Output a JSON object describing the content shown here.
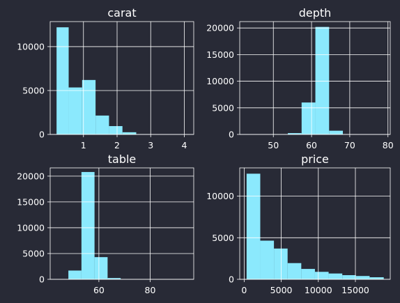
{
  "colors": {
    "background": "#282a36",
    "bar": "#8be9fd",
    "grid": "#ffffff",
    "axes": "#ffffff",
    "text": "#ffffff"
  },
  "chart_data": [
    {
      "type": "bar",
      "title": "carat",
      "xlim": [
        0.01,
        4.28
      ],
      "ylim": [
        0,
        12850
      ],
      "grid": true,
      "xticks": [
        1,
        2,
        3,
        4
      ],
      "xtick_labels": [
        "1",
        "2",
        "3",
        "4"
      ],
      "yticks": [
        0,
        5000,
        10000
      ],
      "ytick_labels": [
        "0",
        "5000",
        "10000"
      ],
      "bins": [
        {
          "start": 0.2,
          "end": 0.56,
          "count": 12200
        },
        {
          "start": 0.56,
          "end": 0.96,
          "count": 5350
        },
        {
          "start": 0.96,
          "end": 1.36,
          "count": 6200
        },
        {
          "start": 1.36,
          "end": 1.76,
          "count": 2150
        },
        {
          "start": 1.76,
          "end": 2.16,
          "count": 950
        },
        {
          "start": 2.16,
          "end": 2.57,
          "count": 250
        },
        {
          "start": 2.57,
          "end": 2.97,
          "count": 40
        },
        {
          "start": 2.97,
          "end": 3.37,
          "count": 10
        },
        {
          "start": 3.37,
          "end": 3.77,
          "count": 5
        },
        {
          "start": 3.77,
          "end": 4.01,
          "count": 3
        }
      ]
    },
    {
      "type": "bar",
      "title": "depth",
      "xlim": [
        41.2,
        80.6
      ],
      "ylim": [
        0,
        21200
      ],
      "grid": true,
      "xticks": [
        50,
        60,
        70,
        80
      ],
      "xtick_labels": [
        "50",
        "60",
        "70",
        "80"
      ],
      "yticks": [
        0,
        5000,
        10000,
        15000,
        20000
      ],
      "ytick_labels": [
        "0",
        "5000",
        "10000",
        "15000",
        "20000"
      ],
      "bins": [
        {
          "start": 43.0,
          "end": 46.6,
          "count": 3
        },
        {
          "start": 46.6,
          "end": 50.2,
          "count": 8
        },
        {
          "start": 50.2,
          "end": 53.8,
          "count": 25
        },
        {
          "start": 53.8,
          "end": 57.4,
          "count": 250
        },
        {
          "start": 57.4,
          "end": 61.0,
          "count": 6000
        },
        {
          "start": 61.0,
          "end": 64.6,
          "count": 20200
        },
        {
          "start": 64.6,
          "end": 68.2,
          "count": 700
        },
        {
          "start": 68.2,
          "end": 71.8,
          "count": 40
        },
        {
          "start": 71.8,
          "end": 75.4,
          "count": 5
        },
        {
          "start": 75.4,
          "end": 79.0,
          "count": 2
        }
      ]
    },
    {
      "type": "bar",
      "title": "table",
      "xlim": [
        41.0,
        97.0
      ],
      "ylim": [
        0,
        21600
      ],
      "grid": true,
      "xticks": [
        60,
        80
      ],
      "xtick_labels": [
        "60",
        "80"
      ],
      "yticks": [
        0,
        5000,
        10000,
        15000,
        20000
      ],
      "ytick_labels": [
        "0",
        "5000",
        "10000",
        "15000",
        "20000"
      ],
      "bins": [
        {
          "start": 43.0,
          "end": 48.1,
          "count": 5
        },
        {
          "start": 48.1,
          "end": 53.2,
          "count": 1700
        },
        {
          "start": 53.2,
          "end": 58.3,
          "count": 20800
        },
        {
          "start": 58.3,
          "end": 63.4,
          "count": 4300
        },
        {
          "start": 63.4,
          "end": 68.5,
          "count": 250
        },
        {
          "start": 68.5,
          "end": 73.6,
          "count": 20
        },
        {
          "start": 73.6,
          "end": 78.7,
          "count": 3
        },
        {
          "start": 78.7,
          "end": 83.8,
          "count": 1
        },
        {
          "start": 83.8,
          "end": 88.9,
          "count": 0
        },
        {
          "start": 88.9,
          "end": 95.0,
          "count": 1
        }
      ]
    },
    {
      "type": "bar",
      "title": "price",
      "xlim": [
        -600,
        19700
      ],
      "ylim": [
        0,
        13400
      ],
      "grid": true,
      "xticks": [
        0,
        5000,
        10000,
        15000
      ],
      "xtick_labels": [
        "0",
        "5000",
        "10000",
        "15000"
      ],
      "yticks": [
        0,
        5000,
        10000
      ],
      "ytick_labels": [
        "0",
        "5000",
        "10000"
      ],
      "bins": [
        {
          "start": 326,
          "end": 2170,
          "count": 12700
        },
        {
          "start": 2170,
          "end": 4014,
          "count": 4650
        },
        {
          "start": 4014,
          "end": 5857,
          "count": 3700
        },
        {
          "start": 5857,
          "end": 7701,
          "count": 1950
        },
        {
          "start": 7701,
          "end": 9545,
          "count": 1250
        },
        {
          "start": 9545,
          "end": 11389,
          "count": 900
        },
        {
          "start": 11389,
          "end": 13233,
          "count": 700
        },
        {
          "start": 13233,
          "end": 15076,
          "count": 500
        },
        {
          "start": 15076,
          "end": 16920,
          "count": 400
        },
        {
          "start": 16920,
          "end": 18823,
          "count": 250
        }
      ]
    }
  ]
}
